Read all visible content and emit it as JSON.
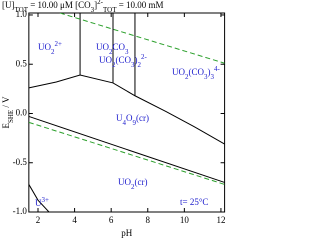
{
  "chart_data": {
    "type": "pourbaix",
    "header": [
      [
        {
          "text": "[U]"
        },
        {
          "text": "TOT",
          "shift": "sub"
        },
        {
          "text": " =   10.00 μM   "
        },
        {
          "text": "[CO"
        },
        {
          "text": "3",
          "shift": "sub"
        },
        {
          "text": "]"
        },
        {
          "text": "2-",
          "shift": "super"
        },
        {
          "text": "TOT",
          "shift": "sub"
        },
        {
          "text": "  =   10.00 mM"
        }
      ]
    ],
    "xlabel": [
      {
        "text": "pH"
      }
    ],
    "ylabel": [
      {
        "text": "E"
      },
      {
        "text": "SHE",
        "shift": "sub"
      },
      {
        "text": " / V"
      }
    ],
    "regions": [
      [
        {
          "text": "UO"
        },
        {
          "text": "2",
          "shift": "sub"
        },
        {
          "text": "2+",
          "shift": "super"
        }
      ],
      [
        {
          "text": "UO"
        },
        {
          "text": "2",
          "shift": "sub"
        },
        {
          "text": "CO"
        },
        {
          "text": "3",
          "shift": "sub"
        }
      ],
      [
        {
          "text": "UO"
        },
        {
          "text": "2",
          "shift": "sub"
        },
        {
          "text": "(CO"
        },
        {
          "text": "3",
          "shift": "sub"
        },
        {
          "text": ")"
        },
        {
          "text": "2",
          "shift": "sub"
        },
        {
          "text": "2-",
          "shift": "super"
        }
      ],
      [
        {
          "text": "UO"
        },
        {
          "text": "2",
          "shift": "sub"
        },
        {
          "text": "(CO"
        },
        {
          "text": "3",
          "shift": "sub"
        },
        {
          "text": ")"
        },
        {
          "text": "3",
          "shift": "sub"
        },
        {
          "text": "4-",
          "shift": "super"
        }
      ],
      [
        {
          "text": "U"
        },
        {
          "text": "4",
          "shift": "sub"
        },
        {
          "text": "O"
        },
        {
          "text": "9",
          "shift": "sub"
        },
        {
          "text": "(cr)"
        }
      ],
      [
        {
          "text": "UO"
        },
        {
          "text": "2",
          "shift": "sub"
        },
        {
          "text": "(cr)"
        }
      ],
      [
        {
          "text": "U"
        },
        {
          "text": "3+",
          "shift": "super"
        }
      ],
      [
        {
          "text": "t= 25°C"
        }
      ]
    ],
    "xlim": [
      1.5,
      12.2
    ],
    "ylim": [
      -1.0,
      1.02
    ],
    "xticks": [
      2,
      4,
      6,
      8,
      10,
      12
    ],
    "yticks": [
      {
        "value": -1,
        "label": "-1.0"
      },
      {
        "value": -0.5,
        "label": "-0.5"
      },
      {
        "value": 0,
        "label": "0.0"
      },
      {
        "value": 0.5,
        "label": "0.5"
      },
      {
        "value": 1,
        "label": "1.0"
      }
    ],
    "series": [
      {
        "x": [
          1.5,
          3,
          4.3,
          6.1,
          7.3,
          9,
          10.5,
          12.2
        ],
        "values": [
          0.26,
          0.32,
          0.39,
          0.31,
          0.18,
          0.02,
          -0.13,
          -0.31
        ],
        "color": "#000000",
        "dash": false
      },
      {
        "x": [
          4.3,
          4.3
        ],
        "values": [
          0.39,
          1.02
        ],
        "color": "#000000",
        "dash": false
      },
      {
        "x": [
          6.1,
          6.1
        ],
        "values": [
          0.31,
          1.02
        ],
        "color": "#000000",
        "dash": false
      },
      {
        "x": [
          7.3,
          7.3
        ],
        "values": [
          0.18,
          1.02
        ],
        "color": "#000000",
        "dash": false
      },
      {
        "x": [
          1.5,
          12.2
        ],
        "values": [
          -0.03,
          -0.7
        ],
        "color": "#000000",
        "dash": false
      },
      {
        "x": [
          1.5,
          2,
          2.6
        ],
        "values": [
          -0.72,
          -0.88,
          -1.0
        ],
        "color": "#000000",
        "dash": false
      },
      {
        "x": [
          3.2,
          12.2
        ],
        "values": [
          1.02,
          0.51
        ],
        "color": "#2ca02c",
        "dash": true
      },
      {
        "x": [
          1.5,
          12.2
        ],
        "values": [
          -0.09,
          -0.72
        ],
        "color": "#2ca02c",
        "dash": true
      }
    ]
  }
}
